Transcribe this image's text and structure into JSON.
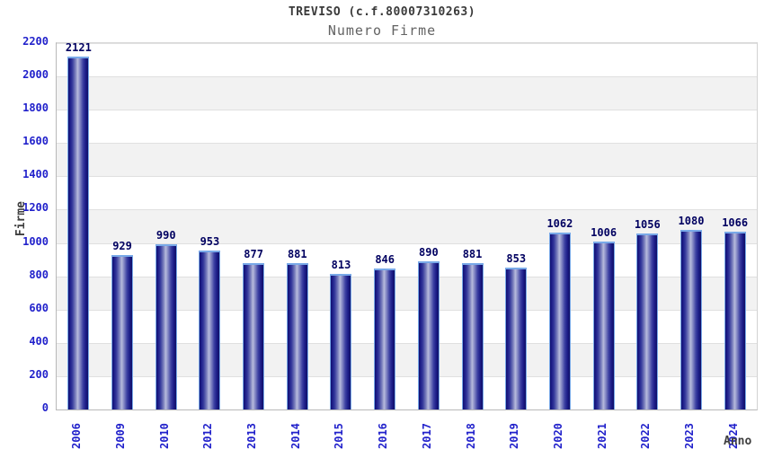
{
  "chart_data": {
    "type": "bar",
    "title": "TREVISO (c.f.80007310263)",
    "subtitle": "Numero Firme",
    "xlabel": "Anno",
    "ylabel": "Firme",
    "categories": [
      "2006",
      "2009",
      "2010",
      "2012",
      "2013",
      "2014",
      "2015",
      "2016",
      "2017",
      "2018",
      "2019",
      "2020",
      "2021",
      "2022",
      "2023",
      "2024"
    ],
    "values": [
      2121,
      929,
      990,
      953,
      877,
      881,
      813,
      846,
      890,
      881,
      853,
      1062,
      1006,
      1056,
      1080,
      1066
    ],
    "ylim": [
      0,
      2200
    ],
    "yticks": [
      0,
      200,
      400,
      600,
      800,
      1000,
      1200,
      1400,
      1600,
      1800,
      2000,
      2200
    ],
    "grid": true,
    "alternating_bands": true,
    "legend": "none"
  },
  "colors": {
    "bar_dark": "#14147a",
    "bar_light": "#b7bbdc",
    "bar_border": "#79a9e8",
    "axis_text_blue": "#2121cb",
    "value_label": "#000060",
    "band_gray": "#f2f2f2",
    "gridline": "#e0e0e0",
    "title_text": "#3a3a3a",
    "subtitle_text": "#636363"
  }
}
